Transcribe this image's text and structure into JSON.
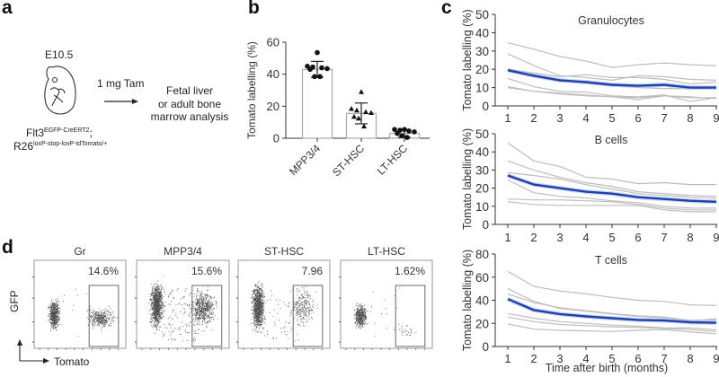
{
  "panel_a": {
    "letter": "a",
    "stage": "E10.5",
    "treatment": "1 mg Tam",
    "outcome_lines": [
      "Fetal liver",
      "or adult bone",
      "marrow analysis"
    ],
    "genotype_line1_base": "Flt3",
    "genotype_line1_sup": "EGFP-CreERT2",
    "genotype_line1_suffix": ";",
    "genotype_line2_base": "R26",
    "genotype_line2_sup": "loxP-stop-loxP-tdTomato/+",
    "icons": [
      "embryo-icon",
      "arrow-right-icon"
    ]
  },
  "panel_b": {
    "letter": "b"
  },
  "panel_c": {
    "letter": "c"
  },
  "panel_d": {
    "letter": "d",
    "y_axis_label": "GFP",
    "x_axis_label": "Tomato",
    "plots": [
      {
        "title": "Gr",
        "gate_value": "14.6%"
      },
      {
        "title": "MPP3/4",
        "gate_value": "15.6%"
      },
      {
        "title": "ST-HSC",
        "gate_value": "7.96"
      },
      {
        "title": "LT-HSC",
        "gate_value": "1.62%"
      }
    ]
  },
  "chart_data": [
    {
      "id": "b",
      "type": "bar",
      "title": "",
      "xlabel": "",
      "ylabel": "Tomato labelling (%)",
      "ylim": [
        0,
        60
      ],
      "yticks": [
        0,
        20,
        40,
        60
      ],
      "categories": [
        "MPP3/4",
        "ST-HSC",
        "LT-HSC"
      ],
      "values": [
        43,
        15.5,
        3
      ],
      "error": [
        5,
        6.5,
        2.5
      ],
      "markers": [
        "circle",
        "triangle",
        "circle"
      ],
      "points": [
        [
          53.5,
          45,
          44.5,
          44,
          43.5,
          43,
          38.5,
          38.5
        ],
        [
          29,
          18.5,
          17.5,
          16.5,
          16,
          13.5,
          12.5,
          7.5
        ],
        [
          5.5,
          5.5,
          5,
          4.5,
          4,
          3,
          1.5,
          0.5
        ]
      ]
    },
    {
      "id": "c-granulocytes",
      "type": "line",
      "title": "Granulocytes",
      "xlabel": "",
      "ylabel": "Tomato labelling (%)",
      "x": [
        1,
        2,
        3,
        4,
        5,
        6,
        7,
        8,
        9
      ],
      "ylim": [
        0,
        50
      ],
      "yticks": [
        0,
        10,
        20,
        30,
        40,
        50
      ],
      "series": [
        {
          "name": "mean",
          "values": [
            19.5,
            16.5,
            14,
            13,
            11.5,
            11,
            11.5,
            10,
            10
          ]
        },
        {
          "name": "individual-1",
          "values": [
            34.5,
            31,
            27,
            24.5,
            21,
            22.5,
            23.5,
            22.5,
            22
          ]
        },
        {
          "name": "individual-2",
          "values": [
            28.5,
            22,
            16.5,
            15.5,
            14,
            16.5,
            16,
            14.5,
            14
          ]
        },
        {
          "name": "individual-3",
          "values": [
            20,
            18,
            16,
            17,
            15.5,
            15.5,
            14.5,
            12,
            13
          ]
        },
        {
          "name": "individual-4",
          "values": [
            19,
            16,
            13.5,
            13,
            11.5,
            10,
            9.5,
            9.5,
            9.5
          ]
        },
        {
          "name": "individual-5",
          "values": [
            15,
            10.5,
            8,
            7.5,
            5.5,
            5,
            6,
            2.5,
            4.5
          ]
        },
        {
          "name": "individual-6",
          "values": [
            10.5,
            8,
            7,
            6,
            5,
            3.5,
            5.5,
            5,
            4
          ]
        },
        {
          "name": "individual-7",
          "values": [
            10,
            8,
            6.5,
            5.5,
            5,
            4.5,
            5.5,
            4.5,
            4.5
          ]
        }
      ]
    },
    {
      "id": "c-bcells",
      "type": "line",
      "title": "B cells",
      "xlabel": "",
      "ylabel": "Tomato labelling (%)",
      "x": [
        1,
        2,
        3,
        4,
        5,
        6,
        7,
        8,
        9
      ],
      "ylim": [
        0,
        50
      ],
      "yticks": [
        0,
        10,
        20,
        30,
        40,
        50
      ],
      "series": [
        {
          "name": "mean",
          "values": [
            27,
            22,
            20,
            18,
            17,
            15,
            14,
            13,
            12.5
          ]
        },
        {
          "name": "individual-1",
          "values": [
            45,
            35,
            32,
            26,
            25,
            22.5,
            23,
            22,
            22
          ]
        },
        {
          "name": "individual-2",
          "values": [
            35,
            30,
            26,
            23,
            21,
            18,
            17,
            16,
            15.5
          ]
        },
        {
          "name": "individual-3",
          "values": [
            28.5,
            27,
            25,
            22,
            19.5,
            17,
            16,
            15,
            14.5
          ]
        },
        {
          "name": "individual-4",
          "values": [
            24.5,
            17.5,
            15.5,
            14.5,
            13,
            12,
            10,
            9,
            9
          ]
        },
        {
          "name": "individual-5",
          "values": [
            14,
            13.5,
            13.5,
            13,
            12.5,
            11,
            9,
            8,
            8
          ]
        },
        {
          "name": "individual-6",
          "values": [
            12.5,
            11,
            10.5,
            10.5,
            10.5,
            10.5,
            8,
            7,
            7
          ]
        }
      ]
    },
    {
      "id": "c-tcells",
      "type": "line",
      "title": "T cells",
      "xlabel": "Time after birth (months)",
      "ylabel": "Tomato labelling (%)",
      "x": [
        1,
        2,
        3,
        4,
        5,
        6,
        7,
        8,
        9
      ],
      "ylim": [
        0,
        80
      ],
      "yticks": [
        0,
        20,
        40,
        60,
        80
      ],
      "series": [
        {
          "name": "mean",
          "values": [
            41,
            31.5,
            28,
            26,
            24.5,
            23,
            22.5,
            21,
            20.5
          ]
        },
        {
          "name": "individual-1",
          "values": [
            65,
            52,
            48,
            45.5,
            42.5,
            40,
            39,
            36,
            35.5
          ]
        },
        {
          "name": "individual-2",
          "values": [
            50,
            39,
            33,
            30.5,
            28,
            26,
            25,
            22,
            24
          ]
        },
        {
          "name": "individual-3",
          "values": [
            45.5,
            38,
            33.5,
            31,
            28.5,
            26.5,
            25.5,
            22.5,
            23
          ]
        },
        {
          "name": "individual-4",
          "values": [
            28.5,
            24.5,
            21.5,
            20,
            18.5,
            17.5,
            16,
            16,
            14.5
          ]
        },
        {
          "name": "individual-5",
          "values": [
            25.5,
            21.5,
            19,
            18,
            17,
            16.5,
            15.5,
            14.5,
            13
          ]
        },
        {
          "name": "individual-6",
          "values": [
            19.5,
            15,
            14,
            13.5,
            13,
            14,
            14.5,
            12.5,
            11
          ]
        }
      ]
    }
  ]
}
